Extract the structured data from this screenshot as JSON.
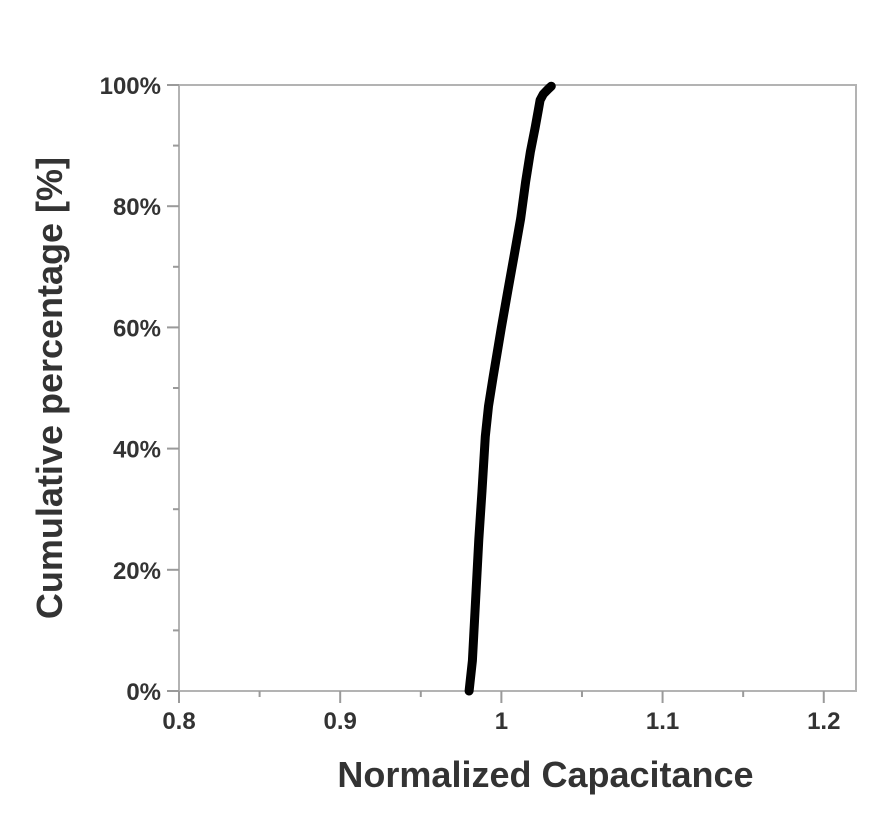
{
  "chart_data": {
    "type": "line",
    "title": "",
    "xlabel": "Normalized Capacitance",
    "ylabel": "Cumulative percentage [%]",
    "xlim": [
      0.8,
      1.22
    ],
    "ylim": [
      0,
      100
    ],
    "x_ticks": [
      {
        "value": 0.8,
        "label": "0.8"
      },
      {
        "value": 0.9,
        "label": "0.9"
      },
      {
        "value": 1.0,
        "label": "1"
      },
      {
        "value": 1.1,
        "label": "1.1"
      },
      {
        "value": 1.2,
        "label": "1.2"
      }
    ],
    "y_ticks": [
      {
        "value": 0,
        "label": "0%"
      },
      {
        "value": 20,
        "label": "20%"
      },
      {
        "value": 40,
        "label": "40%"
      },
      {
        "value": 60,
        "label": "60%"
      },
      {
        "value": 80,
        "label": "80%"
      },
      {
        "value": 100,
        "label": "100%"
      }
    ],
    "grid": false,
    "series": [
      {
        "color": "#000000",
        "x": [
          0.98,
          0.982,
          0.984,
          0.986,
          0.988,
          0.99,
          0.992,
          0.995,
          1.0,
          1.004,
          1.008,
          1.012,
          1.015,
          1.018,
          1.021,
          1.023,
          1.024,
          1.026,
          1.029,
          1.031
        ],
        "y": [
          0,
          5,
          15,
          25,
          33,
          42,
          47,
          52,
          60,
          66,
          72,
          78,
          84,
          89,
          93,
          96,
          97.5,
          98.5,
          99.3,
          99.8
        ]
      }
    ]
  }
}
